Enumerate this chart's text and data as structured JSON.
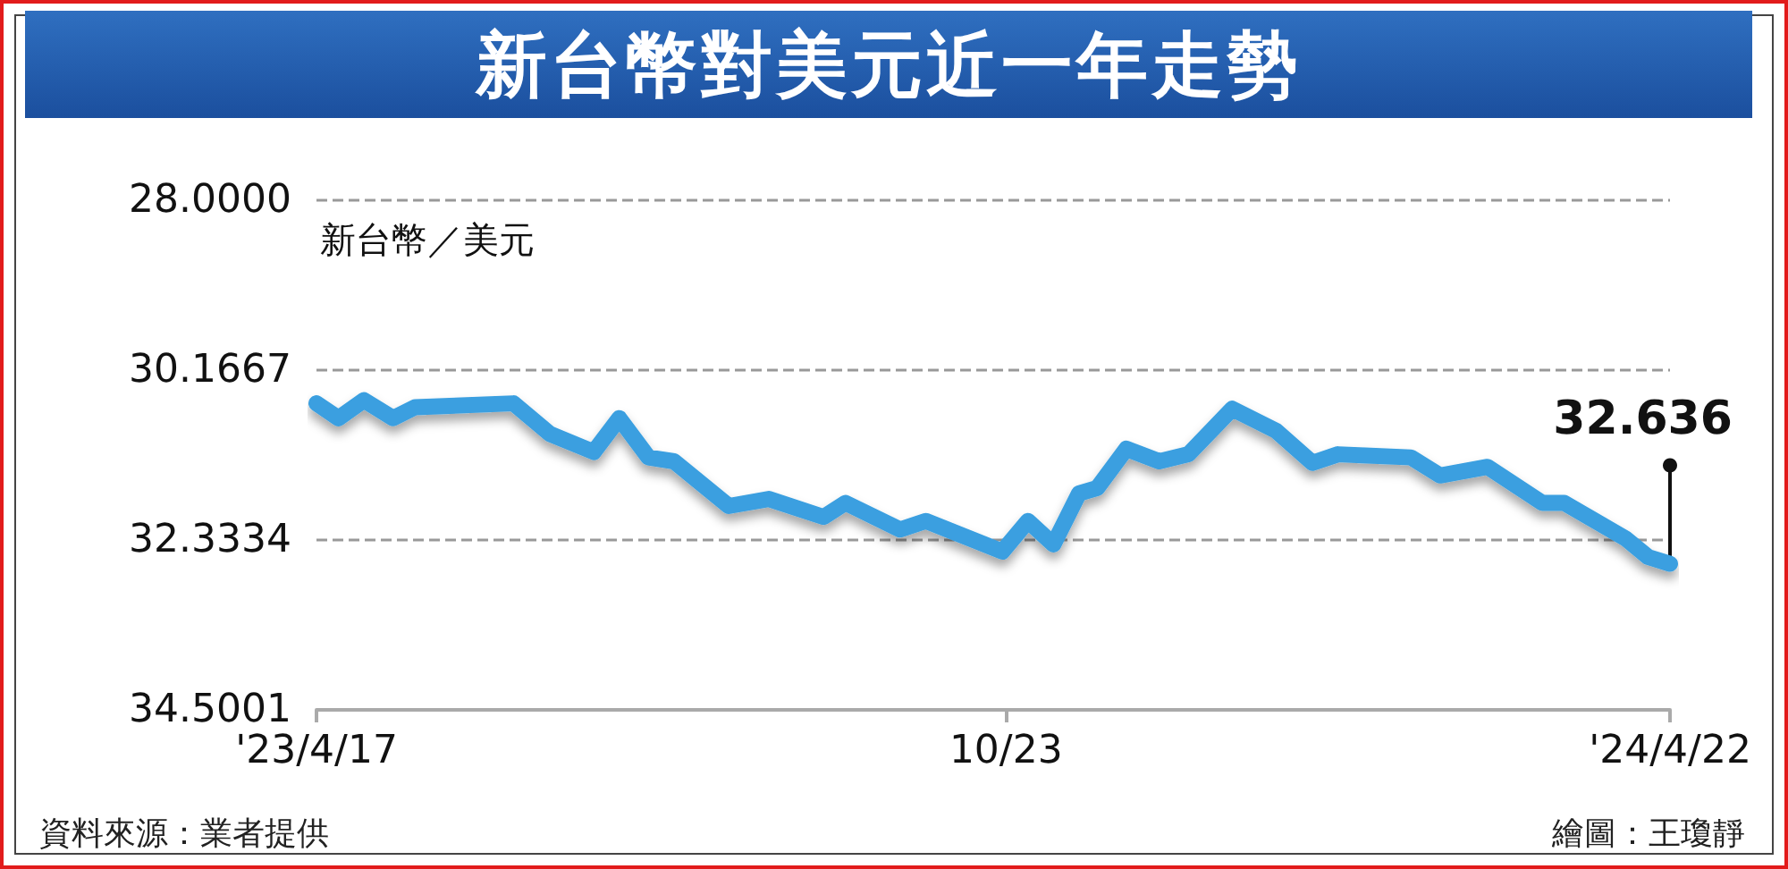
{
  "chart_data": {
    "type": "line",
    "title": "新台幣對美元近一年走勢",
    "ylabel": "新台幣／美元",
    "x": [
      "2023-04-17",
      "2023-04-23",
      "2023-04-30",
      "2023-05-08",
      "2023-05-14",
      "2023-06-10",
      "2023-06-20",
      "2023-07-02",
      "2023-07-09",
      "2023-07-17",
      "2023-07-24",
      "2023-08-08",
      "2023-08-19",
      "2023-09-03",
      "2023-09-09",
      "2023-09-24",
      "2023-10-01",
      "2023-10-22",
      "2023-10-29",
      "2023-11-05",
      "2023-11-12",
      "2023-11-17",
      "2023-11-25",
      "2023-12-04",
      "2023-12-12",
      "2023-12-24",
      "2024-01-05",
      "2024-01-15",
      "2024-01-22",
      "2024-02-11",
      "2024-02-19",
      "2024-03-03",
      "2024-03-18",
      "2024-03-24",
      "2024-04-10",
      "2024-04-16",
      "2024-04-22"
    ],
    "series": [
      {
        "color": "#3a9fe0",
        "values": [
          30.59,
          30.78,
          30.55,
          30.78,
          30.64,
          30.59,
          30.98,
          31.21,
          30.78,
          31.28,
          31.33,
          31.9,
          31.81,
          32.04,
          31.86,
          32.2,
          32.09,
          32.48,
          32.09,
          32.39,
          31.74,
          31.67,
          31.17,
          31.33,
          31.24,
          30.66,
          30.94,
          31.35,
          31.24,
          31.28,
          31.51,
          31.4,
          31.86,
          31.86,
          32.32,
          32.55,
          32.636
        ]
      }
    ],
    "ylim": [
      34.5001,
      28
    ],
    "yticks": [
      {
        "value": 28,
        "label": "28.0000"
      },
      30.1667,
      32.3334,
      {
        "value": 34.5001,
        "label": "34.5001"
      }
    ],
    "xlim": [
      "2023-04-17",
      "2024-04-22"
    ],
    "xticks": [
      {
        "value": "2023-04-17",
        "label": "'23/4/17"
      },
      {
        "value": "2023-10-23",
        "label": "10/23"
      },
      {
        "value": "2024-04-22",
        "label": "'24/4/22"
      }
    ],
    "grid": "y",
    "line_style": "solid",
    "annotations": [
      {
        "text": "32.636",
        "x": "2024-04-22",
        "y": 32.636
      },
      "資料來源：業者提供",
      "繪圖：王瓊靜"
    ]
  }
}
